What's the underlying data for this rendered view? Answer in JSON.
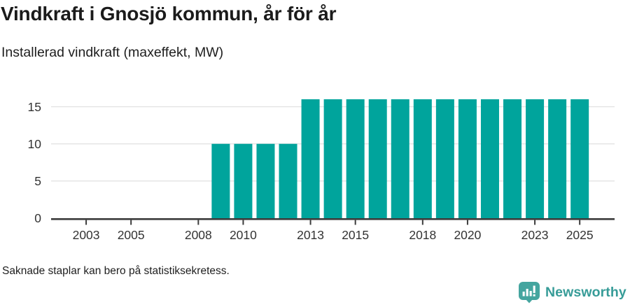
{
  "header": {
    "title": "Vindkraft i Gnosjö kommun, år för år",
    "subtitle": "Installerad vindkraft (maxeffekt, MW)"
  },
  "chart_data": {
    "type": "bar",
    "title": "Vindkraft i Gnosjö kommun, år för år",
    "subtitle": "Installerad vindkraft (maxeffekt, MW)",
    "xlabel": "",
    "ylabel": "Installerad vindkraft (maxeffekt, MW)",
    "x": [
      2002,
      2003,
      2004,
      2005,
      2006,
      2007,
      2008,
      2009,
      2010,
      2011,
      2012,
      2013,
      2014,
      2015,
      2016,
      2017,
      2018,
      2019,
      2020,
      2021,
      2022,
      2023,
      2024,
      2025
    ],
    "values": [
      null,
      null,
      null,
      null,
      null,
      null,
      null,
      10,
      10,
      10,
      10,
      16,
      16,
      16,
      16,
      16,
      16,
      16,
      16,
      16,
      16,
      16,
      16,
      16
    ],
    "x_ticks": [
      2003,
      2005,
      2008,
      2010,
      2013,
      2015,
      2018,
      2020,
      2023,
      2025
    ],
    "y_ticks": [
      0,
      5,
      10,
      15
    ],
    "ylim": [
      0,
      17.2
    ],
    "grid": true,
    "legend": "none",
    "bar_color": "#00a49c",
    "grid_color": "#e3e3e3",
    "axis_color": "#3c3c3c",
    "tick_label_color": "#333333"
  },
  "footnote": {
    "text": "Saknade staplar kan bero på statistiksekretess."
  },
  "branding": {
    "wordmark": "Newsworthy",
    "brand_color": "#379c98",
    "icon_color": "#44a59f",
    "icon": "newsworthy-speech-bubble-bar-chart-icon"
  }
}
